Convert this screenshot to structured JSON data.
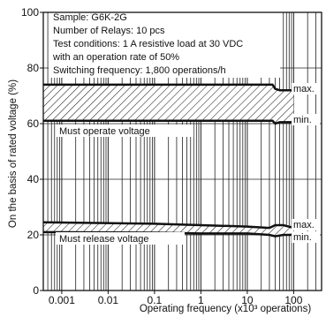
{
  "chart_data": {
    "type": "line",
    "xscale": "log",
    "xlim": [
      0.0004,
      400
    ],
    "ylim": [
      0,
      100
    ],
    "xticks": [
      0.001,
      0.01,
      0.1,
      1,
      10,
      100
    ],
    "xtick_labels": [
      "0.001",
      "0.01",
      "0.1",
      "1",
      "10",
      "100"
    ],
    "yticks": [
      0,
      20,
      40,
      60,
      80,
      100
    ],
    "ytick_labels": [
      "0",
      "20",
      "40",
      "60",
      "80",
      "100"
    ],
    "xlabel": "Operating frequency (x10³ operations)",
    "ylabel": "On the basis of rated voltage (%)",
    "grid": true,
    "info_lines": [
      "Sample: G6K-2G",
      "Number of Relays: 10 pcs",
      "Test conditions: 1 A resistive load at 30 VDC",
      "with an operation rate of 50%",
      "Switching frequency: 1,800 operations/h"
    ],
    "bands": [
      {
        "name": "Must operate voltage",
        "max_label": "max.",
        "min_label": "min.",
        "x": [
          0.0004,
          1,
          10,
          35,
          40,
          50,
          100
        ],
        "max": [
          74,
          74,
          74,
          74,
          72.5,
          72,
          72
        ],
        "min": [
          61,
          61,
          61,
          61,
          60,
          60.5,
          60.5
        ]
      },
      {
        "name": "Must release voltage",
        "max_label": "max.",
        "min_label": "min.",
        "x": [
          0.0004,
          0.1,
          1,
          10,
          30,
          40,
          60,
          100
        ],
        "max": [
          24.5,
          24,
          23.5,
          23,
          22.5,
          23.5,
          23.5,
          22.5
        ],
        "min": [
          21,
          20.8,
          20.5,
          20.5,
          20,
          19.5,
          20,
          20
        ]
      }
    ]
  }
}
